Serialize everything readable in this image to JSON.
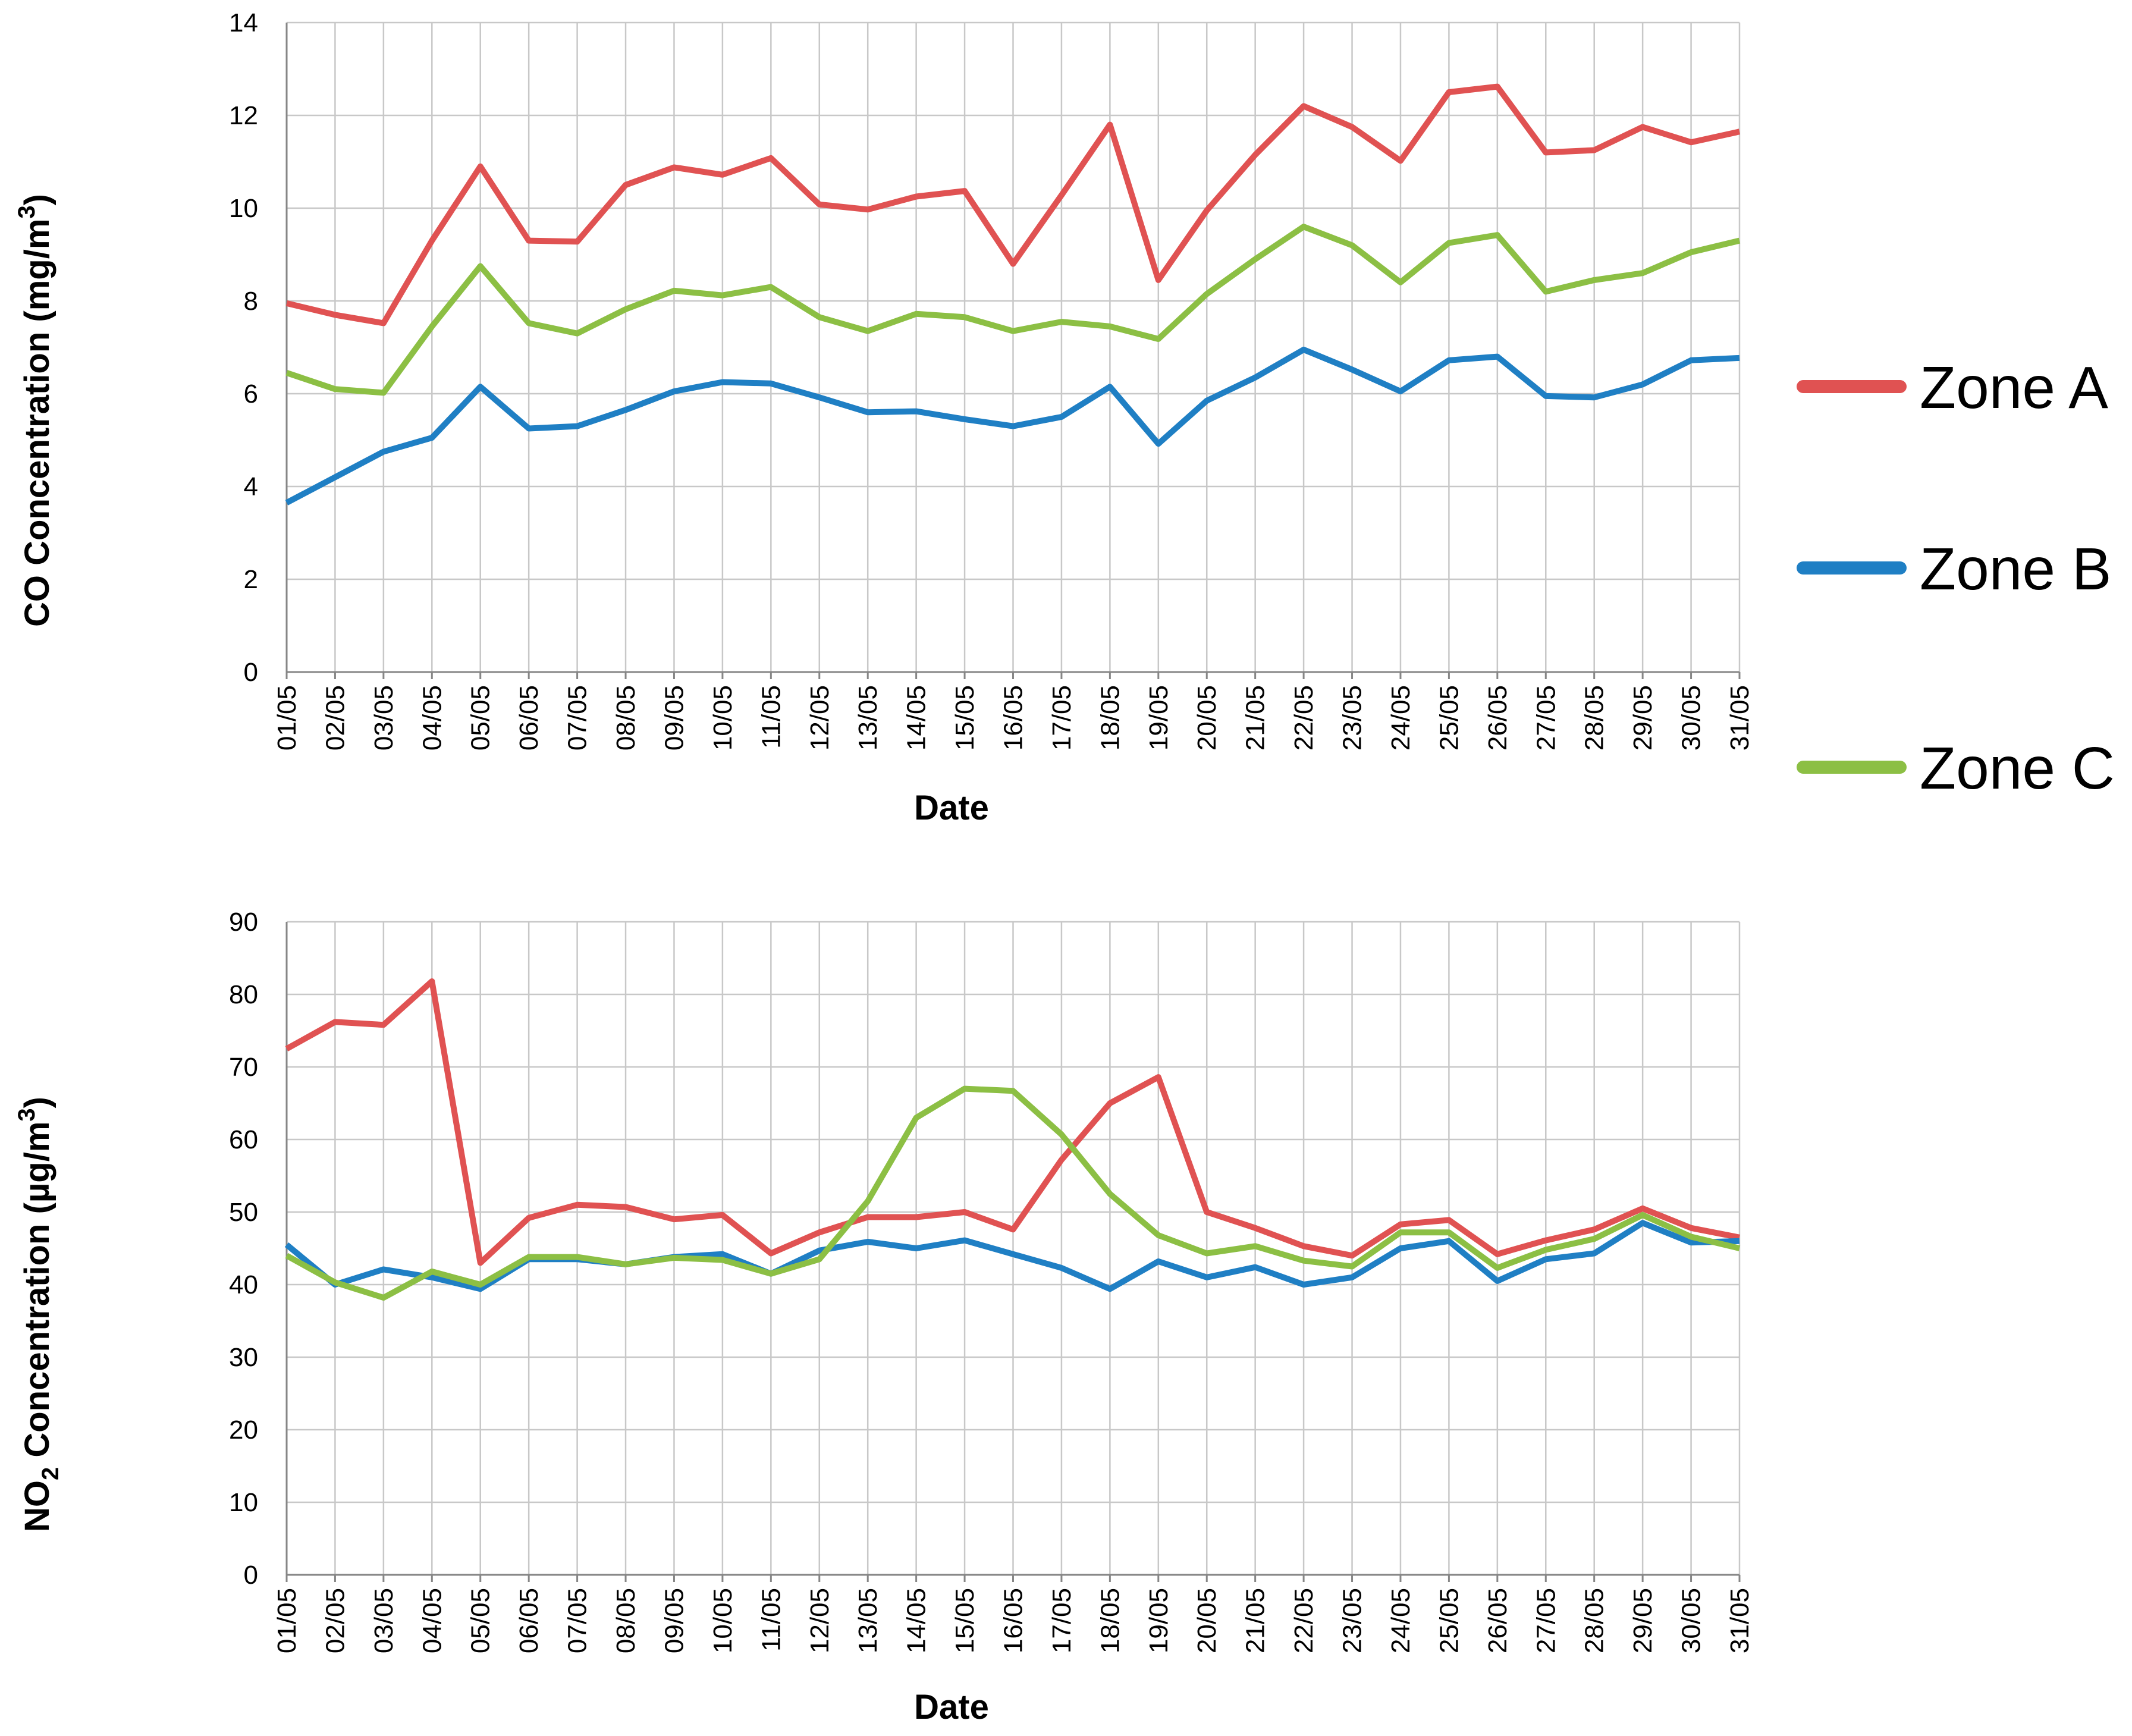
{
  "chart_data": [
    {
      "type": "line",
      "title": "",
      "xlabel": "Date",
      "ylabel": "CO Concentration (mg/m³)",
      "ylabel_parts": {
        "main": "CO Concentration (mg/m",
        "sup": "3",
        "tail": ")"
      },
      "ylim": [
        0,
        14
      ],
      "yticks": [
        0,
        2,
        4,
        6,
        8,
        10,
        12,
        14
      ],
      "grid": true,
      "categories": [
        "01/05",
        "02/05",
        "03/05",
        "04/05",
        "05/05",
        "06/05",
        "07/05",
        "08/05",
        "09/05",
        "10/05",
        "11/05",
        "12/05",
        "13/05",
        "14/05",
        "15/05",
        "16/05",
        "17/05",
        "18/05",
        "19/05",
        "20/05",
        "21/05",
        "22/05",
        "23/05",
        "24/05",
        "25/05",
        "26/05",
        "27/05",
        "28/05",
        "29/05",
        "30/05",
        "31/05"
      ],
      "series": [
        {
          "name": "Zone A",
          "color": "#e05252",
          "values": [
            7.95,
            7.7,
            7.52,
            9.3,
            10.9,
            9.3,
            9.28,
            10.5,
            10.88,
            10.72,
            11.08,
            10.08,
            9.97,
            10.25,
            10.37,
            8.8,
            10.28,
            11.8,
            8.45,
            9.95,
            11.15,
            12.2,
            11.75,
            11.02,
            12.5,
            12.62,
            11.2,
            11.25,
            11.75,
            11.42,
            11.65
          ]
        },
        {
          "name": "Zone B",
          "color": "#1f7fc4",
          "values": [
            3.65,
            4.2,
            4.75,
            5.05,
            6.15,
            5.25,
            5.3,
            5.65,
            6.05,
            6.25,
            6.22,
            5.92,
            5.6,
            5.62,
            5.45,
            5.3,
            5.5,
            6.15,
            4.92,
            5.85,
            6.35,
            6.95,
            6.52,
            6.05,
            6.72,
            6.8,
            5.95,
            5.92,
            6.2,
            6.72,
            6.77
          ]
        },
        {
          "name": "Zone C",
          "color": "#8cbf44",
          "values": [
            6.45,
            6.1,
            6.02,
            7.45,
            8.75,
            7.52,
            7.3,
            7.82,
            8.22,
            8.12,
            8.3,
            7.65,
            7.35,
            7.72,
            7.65,
            7.35,
            7.55,
            7.45,
            7.18,
            8.15,
            8.9,
            9.6,
            9.2,
            8.4,
            9.25,
            9.42,
            8.2,
            8.45,
            8.6,
            9.05,
            9.3
          ]
        }
      ]
    },
    {
      "type": "line",
      "title": "",
      "xlabel": "Date",
      "ylabel": "NO₂ Concentration (µg/m³)",
      "ylabel_parts": {
        "main": "NO",
        "sub": "2",
        "mid": " Concentration (µg/m",
        "sup": "3",
        "tail": ")"
      },
      "ylim": [
        0,
        90
      ],
      "yticks": [
        0,
        10,
        20,
        30,
        40,
        50,
        60,
        70,
        80,
        90
      ],
      "grid": true,
      "categories": [
        "01/05",
        "02/05",
        "03/05",
        "04/05",
        "05/05",
        "06/05",
        "07/05",
        "08/05",
        "09/05",
        "10/05",
        "11/05",
        "12/05",
        "13/05",
        "14/05",
        "15/05",
        "16/05",
        "17/05",
        "18/05",
        "19/05",
        "20/05",
        "21/05",
        "22/05",
        "23/05",
        "24/05",
        "25/05",
        "26/05",
        "27/05",
        "28/05",
        "29/05",
        "30/05",
        "31/05"
      ],
      "series": [
        {
          "name": "Zone A",
          "color": "#e05252",
          "values": [
            72.5,
            76.2,
            75.8,
            81.8,
            43.0,
            49.2,
            51.0,
            50.7,
            49.0,
            49.6,
            44.3,
            47.2,
            49.3,
            49.3,
            50.0,
            47.6,
            57.2,
            65.0,
            68.6,
            50.0,
            47.8,
            45.3,
            44.0,
            48.3,
            48.9,
            44.2,
            46.1,
            47.6,
            50.5,
            47.8,
            46.5
          ]
        },
        {
          "name": "Zone B",
          "color": "#1f7fc4",
          "values": [
            45.5,
            40.0,
            42.1,
            41.0,
            39.4,
            43.5,
            43.5,
            42.8,
            43.8,
            44.2,
            41.5,
            44.7,
            45.9,
            45.0,
            46.1,
            44.2,
            42.3,
            39.4,
            43.2,
            41.0,
            42.4,
            40.0,
            41.0,
            45.0,
            46.0,
            40.5,
            43.5,
            44.3,
            48.5,
            45.8,
            46.0
          ]
        },
        {
          "name": "Zone C",
          "color": "#8cbf44",
          "values": [
            44.0,
            40.3,
            38.2,
            41.8,
            40.0,
            43.8,
            43.8,
            42.8,
            43.7,
            43.4,
            41.5,
            43.5,
            51.5,
            63.0,
            67.0,
            66.7,
            60.7,
            52.5,
            46.8,
            44.3,
            45.3,
            43.3,
            42.5,
            47.2,
            47.2,
            42.3,
            44.8,
            46.3,
            49.6,
            46.6,
            45.0
          ]
        }
      ]
    }
  ],
  "legend": {
    "placement": "right",
    "items": [
      {
        "label": "Zone A",
        "color": "#e05252"
      },
      {
        "label": "Zone B",
        "color": "#1f7fc4"
      },
      {
        "label": "Zone C",
        "color": "#8cbf44"
      }
    ]
  }
}
